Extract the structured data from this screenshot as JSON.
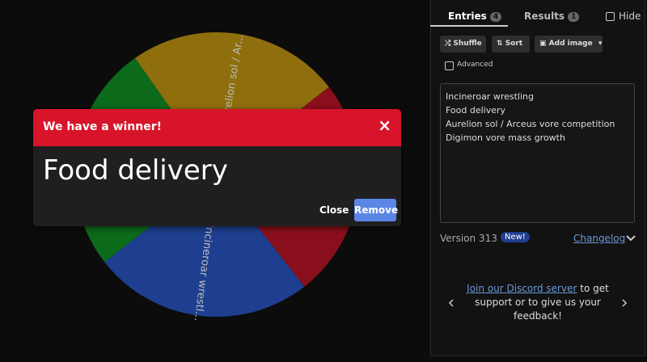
{
  "wheel": {
    "labels": [
      "Aurelion sol / Ar...",
      "Incineroar wrestl..."
    ]
  },
  "dialog": {
    "title": "We have a winner!",
    "close_icon": "×",
    "winner": "Food delivery",
    "close": "Close",
    "remove": "Remove"
  },
  "tabs": {
    "entries": "Entries",
    "entries_count": 4,
    "results": "Results",
    "results_count": 1,
    "hide": "Hide"
  },
  "toolbar": {
    "shuffle": "Shuffle",
    "sort": "Sort",
    "add_image": "Add image",
    "advanced": "Advanced"
  },
  "entries": [
    "Incineroar wrestling",
    "Food delivery",
    "Aurelion sol / Arceus vore competition",
    "Digimon vore mass growth"
  ],
  "footer": {
    "version": "Version 313",
    "new": "New!",
    "changelog": "Changelog"
  },
  "discord": {
    "link": "Join our Discord server",
    "text": " to get support or to give us your feedback!"
  }
}
